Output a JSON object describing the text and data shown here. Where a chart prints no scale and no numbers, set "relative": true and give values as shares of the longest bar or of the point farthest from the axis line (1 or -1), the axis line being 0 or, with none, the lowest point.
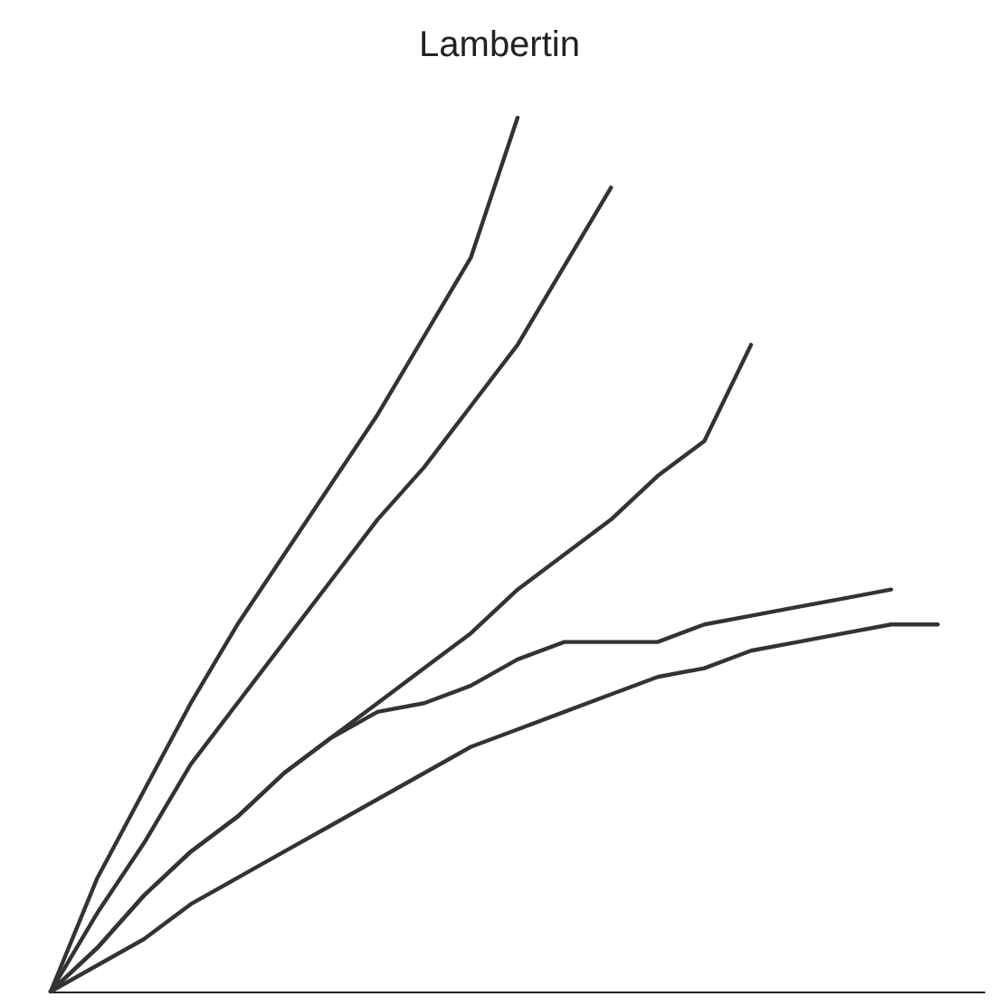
{
  "chart_data": {
    "type": "line",
    "title": "Lambertin",
    "relative": true,
    "marker": "none",
    "line_style": "solid",
    "grid": false,
    "categories": [
      null,
      null,
      null,
      null,
      null,
      null,
      null,
      null,
      null,
      null,
      null,
      null,
      null,
      null,
      null,
      null,
      null,
      null,
      null,
      null,
      null
    ],
    "series": [
      {
        "color": "#333333",
        "values": [
          0,
          0.13,
          0.23,
          0.33,
          0.42,
          0.5,
          0.58,
          0.66,
          0.75,
          0.84,
          1,
          null,
          null,
          null,
          null,
          null,
          null,
          null,
          null,
          null,
          null
        ]
      },
      {
        "color": "#333333",
        "values": [
          0,
          0.09,
          0.17,
          0.26,
          0.33,
          0.4,
          0.47,
          0.54,
          0.6,
          0.67,
          0.74,
          0.83,
          0.92,
          null,
          null,
          null,
          null,
          null,
          null,
          null,
          null
        ]
      },
      {
        "color": "#333333",
        "values": [
          0,
          0.05,
          0.11,
          0.16,
          0.2,
          0.25,
          0.29,
          0.33,
          0.37,
          0.41,
          0.46,
          0.5,
          0.54,
          0.59,
          0.63,
          0.74,
          null,
          null,
          null,
          null,
          null
        ]
      },
      {
        "color": "#333333",
        "values": [
          0,
          0.05,
          0.11,
          0.16,
          0.2,
          0.25,
          0.29,
          0.32,
          0.33,
          0.35,
          0.38,
          0.4,
          0.4,
          0.4,
          0.42,
          0.43,
          0.44,
          0.45,
          0.46,
          null,
          null
        ]
      },
      {
        "color": "#333333",
        "values": [
          0,
          0.03,
          0.06,
          0.1,
          0.13,
          0.16,
          0.19,
          0.22,
          0.25,
          0.28,
          0.3,
          0.32,
          0.34,
          0.36,
          0.37,
          0.39,
          0.4,
          0.41,
          0.42,
          0.42,
          null
        ]
      }
    ]
  }
}
